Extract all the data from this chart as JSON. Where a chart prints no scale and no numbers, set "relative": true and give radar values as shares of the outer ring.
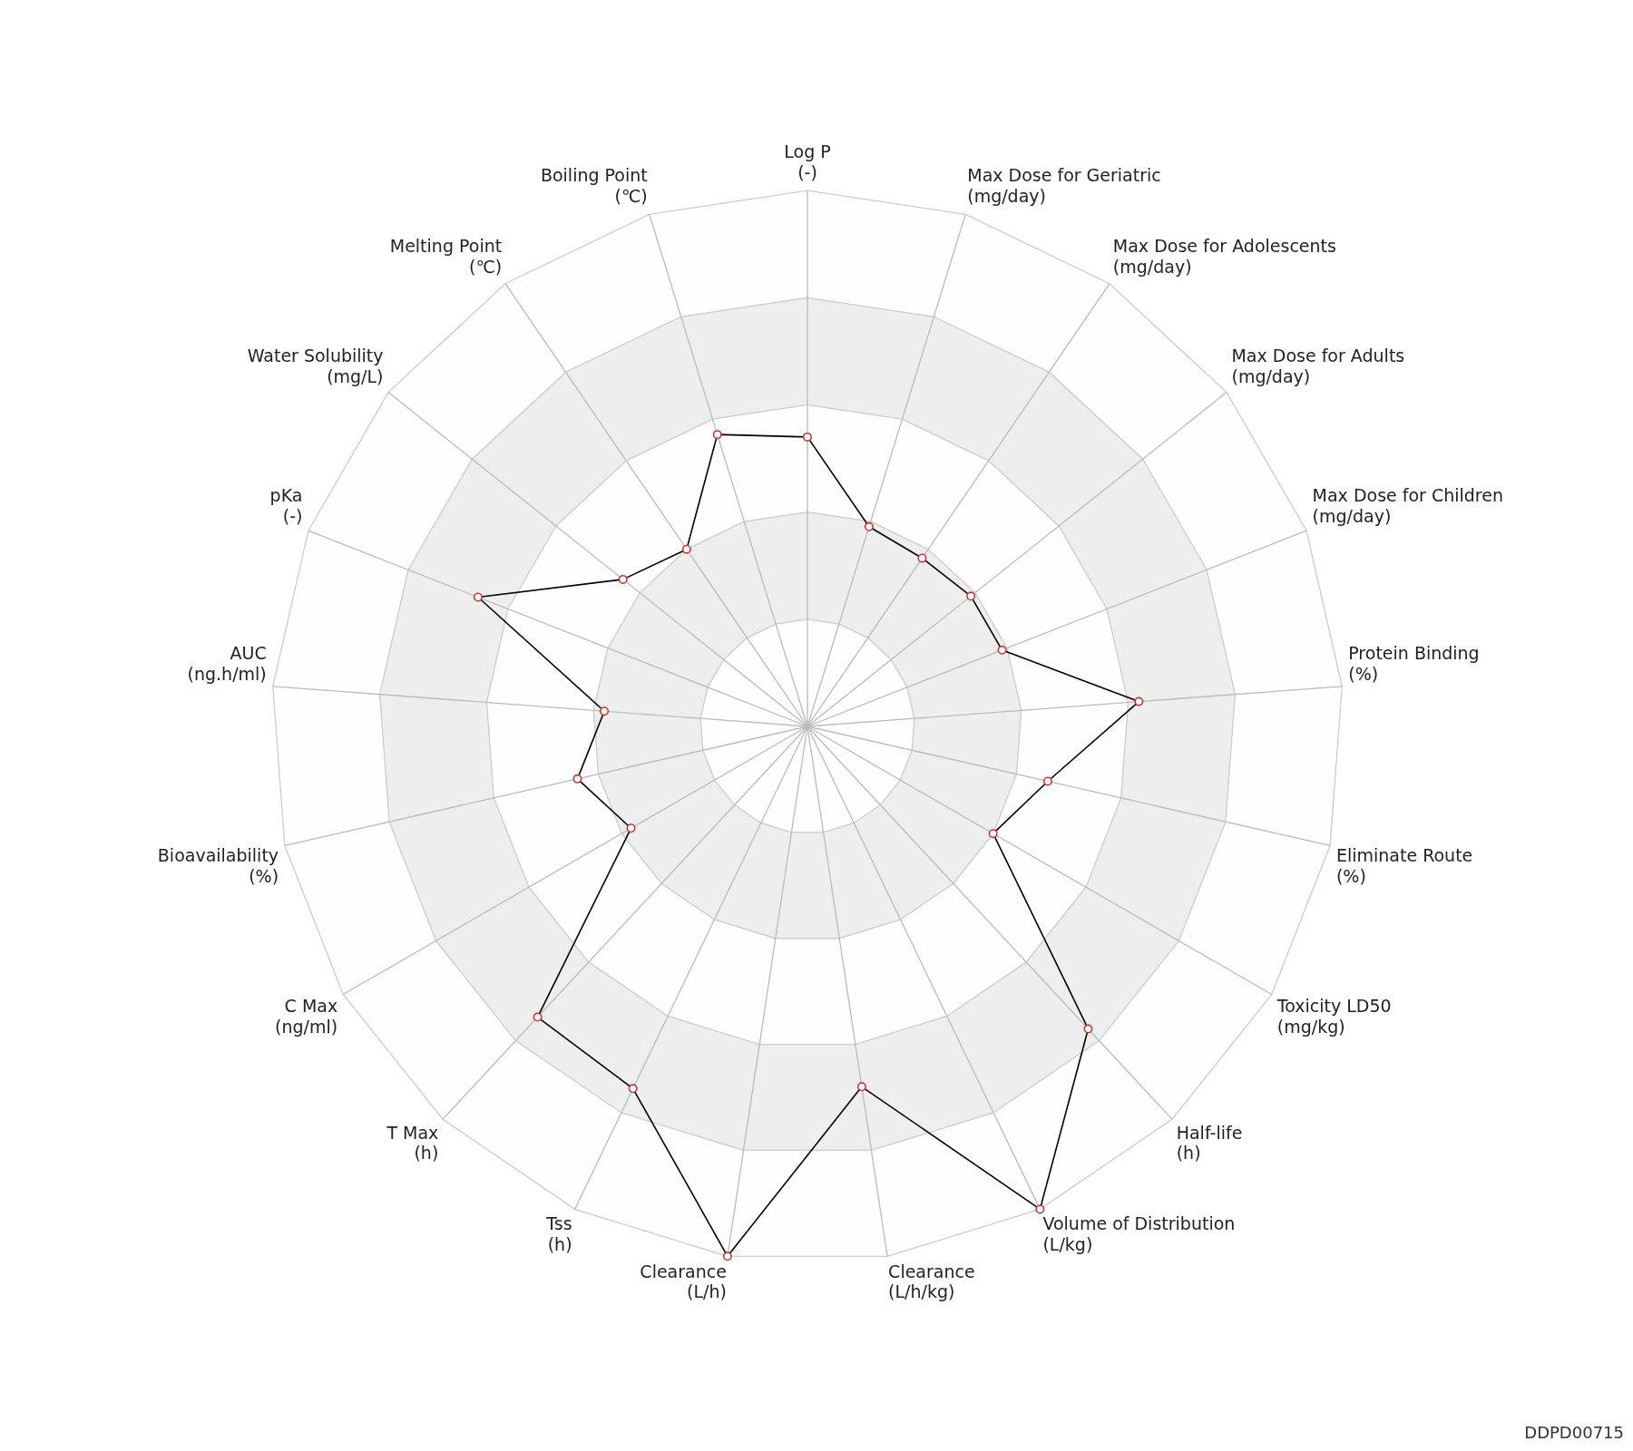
{
  "chart_data": {
    "type": "radar",
    "categories": [
      "Log P\n(-)",
      "Max Dose for Geriatric\n(mg/day)",
      "Max Dose for Adolescents\n(mg/day)",
      "Max Dose for Adults\n(mg/day)",
      "Max Dose for Children\n(mg/day)",
      "Protein Binding\n(%)",
      "Eliminate Route\n(%)",
      "Toxicity LD50\n(mg/kg)",
      "Half-life\n(h)",
      "Volume of Distribution\n(L/kg)",
      "Clearance\n(L/h/kg)",
      "Clearance\n(L/h)",
      "Tss\n(h)",
      "T Max\n(h)",
      "C Max\n(ng/ml)",
      "Bioavailability\n(%)",
      "AUC\n(ng.h/ml)",
      "pKa\n(-)",
      "Water Solubility\n(mg/L)",
      "Melting Point\n(℃)",
      "Boiling Point\n(℃)"
    ],
    "series": [
      {
        "color": "#000000",
        "values": [
          0.54,
          0.39,
          0.38,
          0.39,
          0.39,
          0.62,
          0.46,
          0.4,
          0.77,
          1,
          0.68,
          1,
          0.75,
          0.74,
          0.38,
          0.44,
          0.38,
          0.66,
          0.44,
          0.4,
          0.57
        ]
      }
    ],
    "relative": true,
    "grid": true,
    "marker": "circle",
    "annotations": [
      "DDPD00715"
    ]
  }
}
